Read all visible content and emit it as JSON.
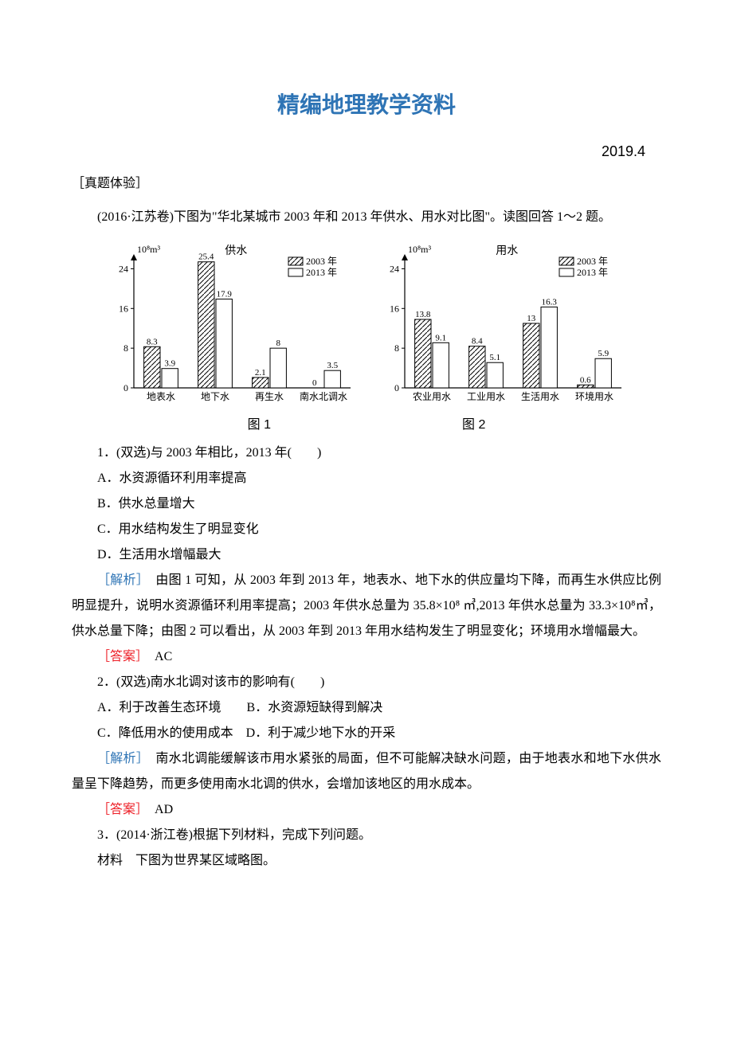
{
  "mainTitle": "精编地理教学资料",
  "dateLine": "2019.4",
  "sectionHeader": "［真题体验］",
  "intro": "(2016·江苏卷)下图为\"华北某城市 2003 年和 2013 年供水、用水对比图\"。读图回答 1～2 题。",
  "charts": {
    "shared": {
      "legend": {
        "y2003": "2003 年",
        "y2013": "2013 年"
      },
      "ylabel": "10⁸m³",
      "ylim": [
        0,
        26
      ],
      "yticks": [
        0,
        8,
        16,
        24
      ],
      "axis_color": "#000000",
      "hatch_color": "#000000",
      "bar_fill": "#ffffff",
      "bar_stroke": "#000000",
      "label_fontsize": 12,
      "background_color": "#ffffff",
      "caption_fontsize": 16,
      "caption_font": "SimHei"
    },
    "supply": {
      "caption": "图 1",
      "axis_label_top": "供水",
      "categories": [
        "地表水",
        "地下水",
        "再生水",
        "南水北调水"
      ],
      "y2003": [
        8.3,
        25.4,
        2.1,
        0
      ],
      "y2013": [
        3.9,
        17.9,
        8.0,
        3.5
      ]
    },
    "usage": {
      "caption": "图 2",
      "axis_label_top": "用水",
      "categories": [
        "农业用水",
        "工业用水",
        "生活用水",
        "环境用水"
      ],
      "y2003": [
        13.8,
        8.4,
        13.0,
        0.6
      ],
      "y2013": [
        9.1,
        5.1,
        16.3,
        5.9
      ]
    }
  },
  "q1": {
    "stem": "1．(双选)与 2003 年相比，2013 年(　　)",
    "A": "A．水资源循环利用率提高",
    "B": "B．供水总量增大",
    "C": "C．用水结构发生了明显变化",
    "D": "D．生活用水增幅最大",
    "analysisLabel": "［解析］",
    "analysis": "　由图 1 可知，从 2003 年到 2013 年，地表水、地下水的供应量均下降，而再生水供应比例明显提升，说明水资源循环利用率提高；2003 年供水总量为 35.8×10⁸ ㎥,2013 年供水总量为 33.3×10⁸㎥，供水总量下降；由图 2 可以看出，从 2003 年到 2013 年用水结构发生了明显变化；环境用水增幅最大。",
    "answerLabel": "［答案］",
    "answer": "　AC"
  },
  "q2": {
    "stem": "2．(双选)南水北调对该市的影响有(　　)",
    "A": "A．利于改善生态环境　　B．水资源短缺得到解决",
    "C": "C．降低用水的使用成本　D．利于减少地下水的开采",
    "analysisLabel": "［解析］",
    "analysis": "　南水北调能缓解该市用水紧张的局面，但不可能解决缺水问题，由于地表水和地下水供水量呈下降趋势，而更多使用南水北调的供水，会增加该地区的用水成本。",
    "answerLabel": "［答案］",
    "answer": "　AD"
  },
  "q3": {
    "stem": "3．(2014·浙江卷)根据下列材料，完成下列问题。",
    "material": "材料　下图为世界某区域略图。"
  },
  "style": {
    "title_fontsize": 28,
    "title_color": "#2e74b5",
    "date_fontsize": 18,
    "body_fontsize": 16,
    "body_line_height": 2.0,
    "blue": "#2e74b5",
    "red": "#ed1c24",
    "text_color": "#000000"
  }
}
